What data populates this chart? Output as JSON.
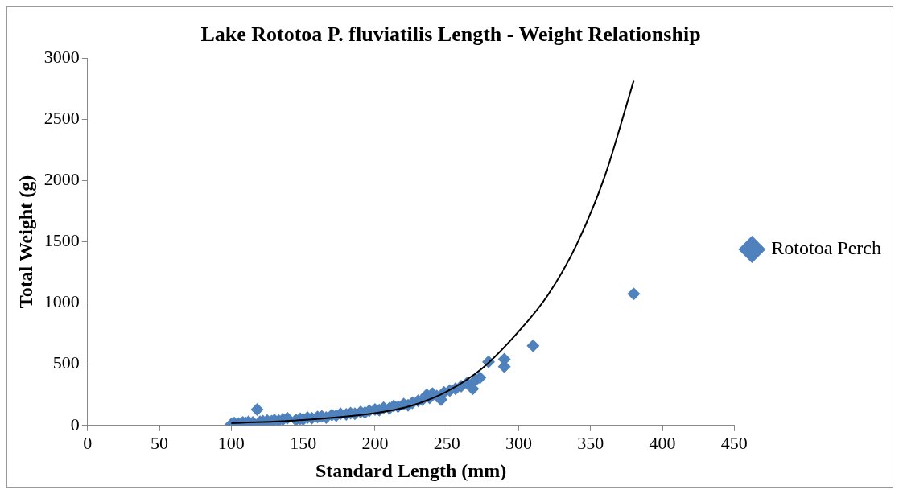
{
  "chart_data": {
    "type": "scatter",
    "title": "Lake Rototoa P. fluviatilis Length - Weight Relationship",
    "xlabel": "Standard Length (mm)",
    "ylabel": "Total Weight (g)",
    "xlim": [
      0,
      450
    ],
    "xticks": [
      0,
      50,
      100,
      150,
      200,
      250,
      300,
      350,
      400,
      450
    ],
    "ylim": [
      0,
      3000
    ],
    "yticks": [
      0,
      500,
      1000,
      1500,
      2000,
      2500,
      3000
    ],
    "grid": false,
    "legend": "right",
    "marker": "diamond",
    "series": [
      {
        "name": "Rototoa Perch",
        "color": "#4f81bd",
        "x": [
          100,
          102,
          105,
          108,
          110,
          112,
          115,
          118,
          120,
          122,
          125,
          128,
          130,
          133,
          136,
          139,
          145,
          148,
          150,
          153,
          156,
          160,
          163,
          166,
          170,
          173,
          176,
          180,
          183,
          186,
          190,
          193,
          196,
          200,
          203,
          206,
          210,
          213,
          216,
          220,
          223,
          226,
          230,
          233,
          236,
          238,
          240,
          243,
          246,
          248,
          252,
          256,
          260,
          264,
          268,
          270,
          273,
          279,
          290,
          290,
          310,
          380
        ],
        "values": [
          10,
          20,
          15,
          25,
          20,
          30,
          25,
          130,
          30,
          35,
          40,
          35,
          45,
          40,
          50,
          60,
          45,
          55,
          50,
          65,
          60,
          70,
          75,
          65,
          85,
          80,
          95,
          90,
          100,
          95,
          110,
          105,
          120,
          130,
          125,
          145,
          140,
          160,
          155,
          175,
          165,
          185,
          200,
          210,
          250,
          225,
          260,
          240,
          210,
          270,
          285,
          300,
          320,
          345,
          300,
          370,
          390,
          520,
          540,
          480,
          650,
          1075
        ]
      },
      {
        "type": "line",
        "color": "#000000",
        "marker": "none",
        "x": [
          100,
          150,
          200,
          225,
          250,
          275,
          300,
          320,
          340,
          360,
          380
        ],
        "values": [
          18,
          45,
          100,
          160,
          277,
          470,
          768,
          1060,
          1470,
          2040,
          2815
        ]
      }
    ]
  }
}
